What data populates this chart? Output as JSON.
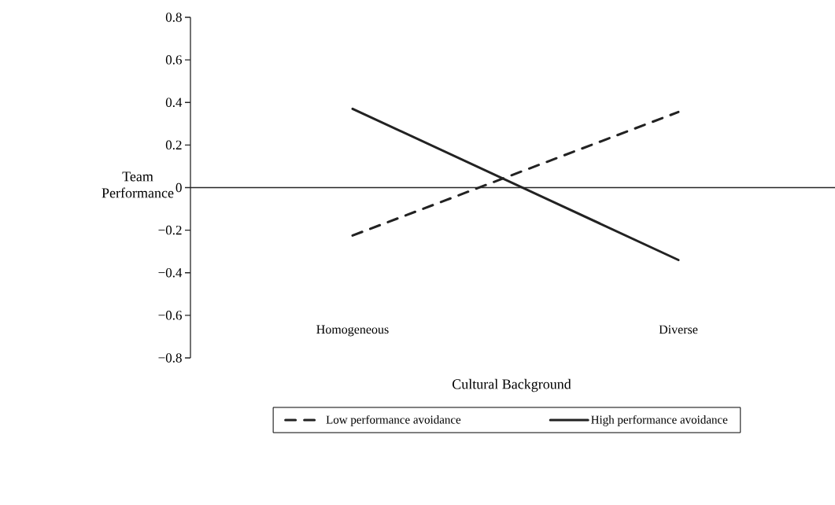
{
  "chart_data": {
    "type": "line",
    "xlabel": "Cultural Background",
    "ylabel": "Team Performance",
    "categories": [
      "Homogeneous",
      "Diverse"
    ],
    "series": [
      {
        "name": "Low performance avoidance",
        "color": "#222222",
        "line_style": "dashed",
        "values": [
          -0.225,
          0.355
        ]
      },
      {
        "name": "High performance avoidance",
        "color": "#222222",
        "line_style": "solid",
        "values": [
          0.37,
          -0.34
        ]
      }
    ],
    "ylim": [
      -0.8,
      0.8
    ],
    "yticks": [
      {
        "value": -0.8,
        "label": "−0.8"
      },
      {
        "value": -0.6,
        "label": "−0.6"
      },
      {
        "value": -0.4,
        "label": "−0.4"
      },
      {
        "value": -0.2,
        "label": "−0.2"
      },
      0,
      0.2,
      0.4,
      0.6,
      0.8
    ],
    "legend": "bottom",
    "marker": "none"
  }
}
